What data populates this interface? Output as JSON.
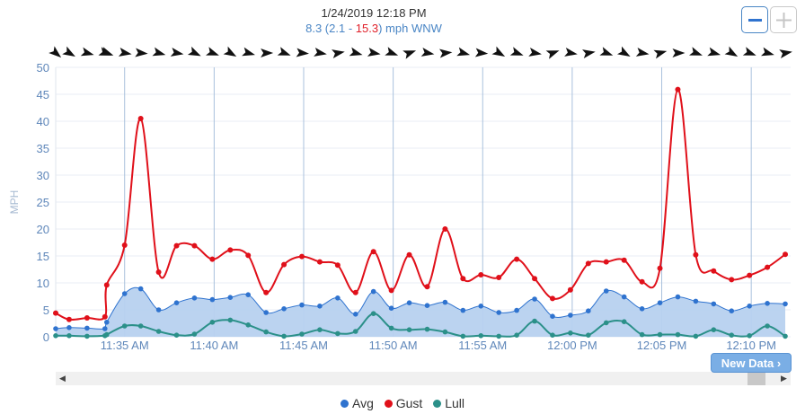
{
  "header": {
    "date": "1/24/2019 12:18 PM",
    "avg": "8.3",
    "open": " (",
    "lull": "2.1",
    "dash": " - ",
    "gust": "15.3",
    "close": ")",
    "unit_dir": " mph WNW"
  },
  "buttons": {
    "zoom_out_icon": "minus-icon",
    "zoom_in_icon": "plus-icon",
    "new_data_label": "New Data",
    "new_data_icon": "chevron-right-icon"
  },
  "scrollbar": {
    "left_icon": "triangle-left-icon",
    "right_icon": "triangle-right-icon"
  },
  "colors": {
    "avg": "#2f73cf",
    "avg_fill": "#b7d1ef",
    "gust": "#e0101a",
    "lull": "#2b9089",
    "grid": "#a9c1dd",
    "axis_text": "#5f87ba"
  },
  "chart_data": {
    "type": "line",
    "ylabel": "MPH",
    "xlabel": "",
    "ylim": [
      0,
      50
    ],
    "yticks": [
      0,
      5,
      10,
      15,
      20,
      25,
      30,
      35,
      40,
      45,
      50
    ],
    "xticks": [
      {
        "t": 35,
        "label": "11:35 AM"
      },
      {
        "t": 40,
        "label": "11:40 AM"
      },
      {
        "t": 45,
        "label": "11:45 AM"
      },
      {
        "t": 50,
        "label": "11:50 AM"
      },
      {
        "t": 55,
        "label": "11:55 AM"
      },
      {
        "t": 60,
        "label": "12:00 PM"
      },
      {
        "t": 65,
        "label": "12:05 PM"
      },
      {
        "t": 70,
        "label": "12:10 PM"
      }
    ],
    "xlim": [
      31.15,
      72.2
    ],
    "x": [
      31.15,
      31.9,
      32.9,
      33.9,
      34.0,
      35.0,
      35.9,
      36.9,
      37.9,
      38.9,
      39.9,
      40.9,
      41.9,
      42.9,
      43.9,
      44.9,
      45.9,
      46.9,
      47.9,
      48.9,
      49.9,
      50.9,
      51.9,
      52.9,
      53.9,
      54.9,
      55.9,
      56.9,
      57.9,
      58.9,
      59.9,
      60.9,
      61.9,
      62.9,
      63.9,
      64.9,
      65.9,
      66.9,
      67.9,
      68.9,
      69.9,
      70.9,
      71.9
    ],
    "series": [
      {
        "name": "Avg",
        "values": [
          1.5,
          1.7,
          1.6,
          1.5,
          2.7,
          8.0,
          8.9,
          5.0,
          6.3,
          7.2,
          6.9,
          7.3,
          7.8,
          4.5,
          5.2,
          5.9,
          5.7,
          7.2,
          4.2,
          8.4,
          5.3,
          6.3,
          5.8,
          6.4,
          4.9,
          5.7,
          4.5,
          4.9,
          7.0,
          3.8,
          4.0,
          4.8,
          8.5,
          7.4,
          5.2,
          6.3,
          7.4,
          6.6,
          6.1,
          4.8,
          5.7,
          6.2,
          6.1
        ]
      },
      {
        "name": "Gust",
        "values": [
          4.4,
          3.2,
          3.5,
          3.7,
          9.6,
          17.0,
          40.5,
          12.0,
          16.9,
          16.9,
          14.4,
          16.1,
          15.1,
          8.2,
          13.4,
          14.9,
          13.9,
          13.3,
          8.2,
          15.8,
          8.6,
          15.2,
          9.3,
          20.0,
          10.8,
          11.5,
          11.0,
          14.4,
          10.8,
          7.1,
          8.7,
          13.6,
          13.9,
          14.2,
          10.2,
          12.7,
          45.9,
          15.2,
          12.2,
          10.6,
          11.4,
          12.9,
          15.3
        ]
      },
      {
        "name": "Lull",
        "values": [
          0.2,
          0.2,
          0.1,
          0.2,
          0.4,
          2.0,
          2.0,
          1.0,
          0.3,
          0.5,
          2.7,
          3.1,
          2.2,
          0.9,
          0.1,
          0.5,
          1.3,
          0.6,
          1.0,
          4.3,
          1.6,
          1.3,
          1.4,
          0.9,
          0.1,
          0.2,
          0.1,
          0.3,
          2.9,
          0.3,
          0.7,
          0.3,
          2.6,
          2.8,
          0.4,
          0.4,
          0.4,
          0.1,
          1.3,
          0.3,
          0.2,
          2.0,
          0.1
        ]
      }
    ],
    "wind_dir_deg": [
      310,
      300,
      285,
      290,
      290,
      280,
      275,
      285,
      280,
      295,
      290,
      300,
      285,
      270,
      290,
      275,
      280,
      260,
      285,
      280,
      290,
      250,
      280,
      265,
      285,
      275,
      300,
      290,
      280,
      250,
      280,
      260,
      290,
      300,
      280,
      255,
      270,
      290,
      285,
      300,
      290,
      285,
      260
    ],
    "legend": [
      "Avg",
      "Gust",
      "Lull"
    ],
    "legend_position": "bottom-center"
  }
}
